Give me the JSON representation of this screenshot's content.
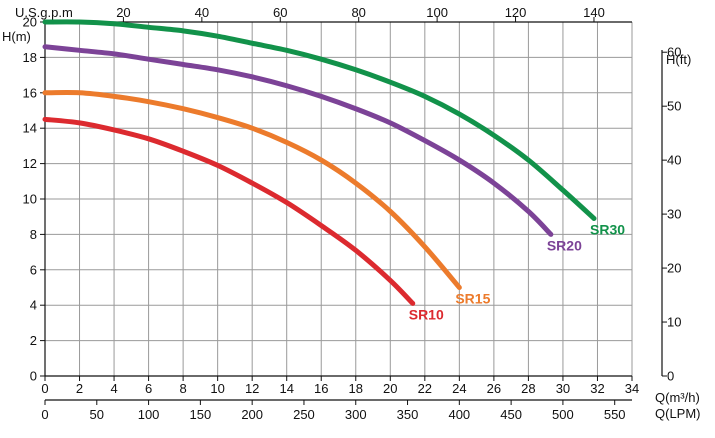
{
  "chart_data": {
    "type": "line",
    "axes": {
      "y_left": {
        "label": "H(m)",
        "range": [
          0,
          20
        ],
        "ticks": [
          0,
          2,
          4,
          6,
          8,
          10,
          12,
          14,
          16,
          18,
          20
        ]
      },
      "x_bottom": {
        "label": "Q(m³/h)",
        "range": [
          0,
          34
        ],
        "ticks": [
          0,
          2,
          4,
          6,
          8,
          10,
          12,
          14,
          16,
          18,
          20,
          22,
          24,
          26,
          28,
          30,
          32,
          34
        ]
      },
      "x_lpm": {
        "label": "Q(LPM)",
        "range": [
          0,
          566.7
        ],
        "ticks": [
          0,
          50,
          100,
          150,
          200,
          250,
          300,
          350,
          400,
          450,
          500,
          550
        ]
      },
      "x_top": {
        "label": "U.S.g.p.m",
        "range": [
          0,
          149.7
        ],
        "ticks": [
          20,
          40,
          60,
          80,
          100,
          120,
          140
        ]
      },
      "y_right": {
        "label": "H(ft)",
        "range": [
          0,
          65.6
        ],
        "ticks": [
          0,
          10,
          20,
          30,
          40,
          50,
          60
        ]
      }
    },
    "grid": true,
    "series": [
      {
        "name": "SR10",
        "color": "#dc2a2f",
        "x": [
          0,
          2,
          4,
          6,
          8,
          10,
          12,
          14,
          16,
          18,
          20,
          21.3
        ],
        "y": [
          14.5,
          14.3,
          13.9,
          13.4,
          12.7,
          11.9,
          10.9,
          9.8,
          8.5,
          7.1,
          5.4,
          4.1
        ]
      },
      {
        "name": "SR15",
        "color": "#ec7b2c",
        "x": [
          0,
          2,
          4,
          6,
          8,
          10,
          12,
          14,
          16,
          18,
          20,
          22,
          24
        ],
        "y": [
          16.0,
          16.0,
          15.8,
          15.5,
          15.1,
          14.6,
          14.0,
          13.2,
          12.2,
          10.9,
          9.3,
          7.3,
          5.0
        ]
      },
      {
        "name": "SR20",
        "color": "#7c4397",
        "x": [
          0,
          2,
          4,
          6,
          8,
          10,
          12,
          14,
          16,
          18,
          20,
          22,
          24,
          26,
          28,
          29.3
        ],
        "y": [
          18.6,
          18.4,
          18.2,
          17.9,
          17.6,
          17.3,
          16.9,
          16.4,
          15.8,
          15.1,
          14.3,
          13.3,
          12.2,
          10.9,
          9.3,
          8.0
        ]
      },
      {
        "name": "SR30",
        "color": "#12924a",
        "x": [
          0,
          2,
          4,
          6,
          8,
          10,
          12,
          14,
          16,
          18,
          20,
          22,
          24,
          26,
          28,
          30,
          31.8
        ],
        "y": [
          20.0,
          20.0,
          19.9,
          19.7,
          19.5,
          19.2,
          18.8,
          18.4,
          17.9,
          17.3,
          16.6,
          15.8,
          14.8,
          13.6,
          12.2,
          10.5,
          8.9
        ]
      }
    ]
  }
}
